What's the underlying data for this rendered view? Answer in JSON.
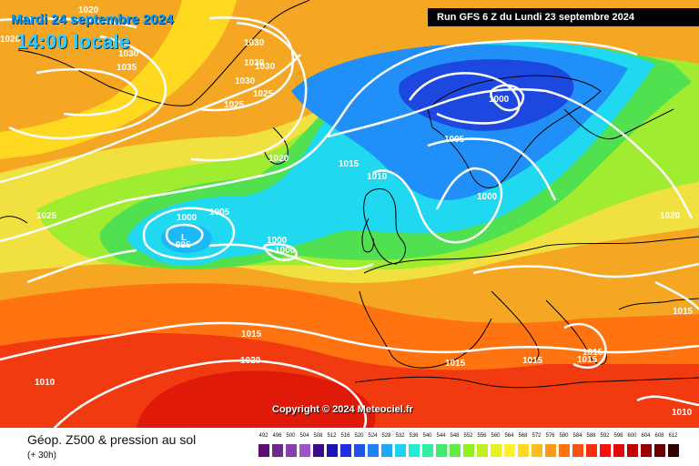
{
  "header": {
    "date": "Mardi 24 septembre 2024",
    "local_time": "14:00 locale",
    "run_info": "Run GFS 6 Z du Lundi 23 septembre 2024"
  },
  "copyright": "Copyright © 2024 Meteociel.fr",
  "footer": {
    "title": "Géop. Z500 & pression au sol",
    "subtitle": "(+ 30h)"
  },
  "legend": {
    "ticks": [
      "492",
      "496",
      "500",
      "504",
      "508",
      "512",
      "516",
      "520",
      "524",
      "528",
      "532",
      "536",
      "540",
      "544",
      "548",
      "552",
      "556",
      "560",
      "564",
      "568",
      "572",
      "576",
      "580",
      "584",
      "588",
      "592",
      "596",
      "600",
      "604",
      "608",
      "612"
    ],
    "colors": [
      "#5c0f6e",
      "#6e2a8a",
      "#8a3fb0",
      "#9a56c8",
      "#3a0a8a",
      "#1c14b4",
      "#1e30e0",
      "#1c54f0",
      "#2080f8",
      "#20a8f8",
      "#20d0f0",
      "#24ecd0",
      "#30f0a0",
      "#40ec70",
      "#60ec40",
      "#90f020",
      "#c0f020",
      "#e8f020",
      "#fff030",
      "#ffd820",
      "#ffbc20",
      "#ff9a18",
      "#ff7410",
      "#ff5010",
      "#ff2c10",
      "#f81010",
      "#e00808",
      "#c00000",
      "#980000",
      "#6a0000",
      "#300000"
    ]
  },
  "map": {
    "colors": {
      "ocean_orange": "#f5a623",
      "subtropical_red": "#f23a10",
      "yellow_band": "#f0e040",
      "trough_green": "#50e050",
      "trough_cyan": "#20d8f0",
      "trough_blue": "#2090f8",
      "trough_core": "#1c48e0",
      "isobar": "#ffffff",
      "coast": "#000000"
    },
    "isobar_labels": [
      "1020",
      "1030",
      "1035",
      "1030",
      "1030",
      "1030",
      "1030",
      "1025",
      "1025",
      "1020",
      "1015",
      "1010",
      "1005",
      "1000",
      "995",
      "1000",
      "1000",
      "1000",
      "1005",
      "1000",
      "1025",
      "1020",
      "1015",
      "1015",
      "1015",
      "1020",
      "1010",
      "1015",
      "1015",
      "1015",
      "1010",
      "1020"
    ]
  }
}
